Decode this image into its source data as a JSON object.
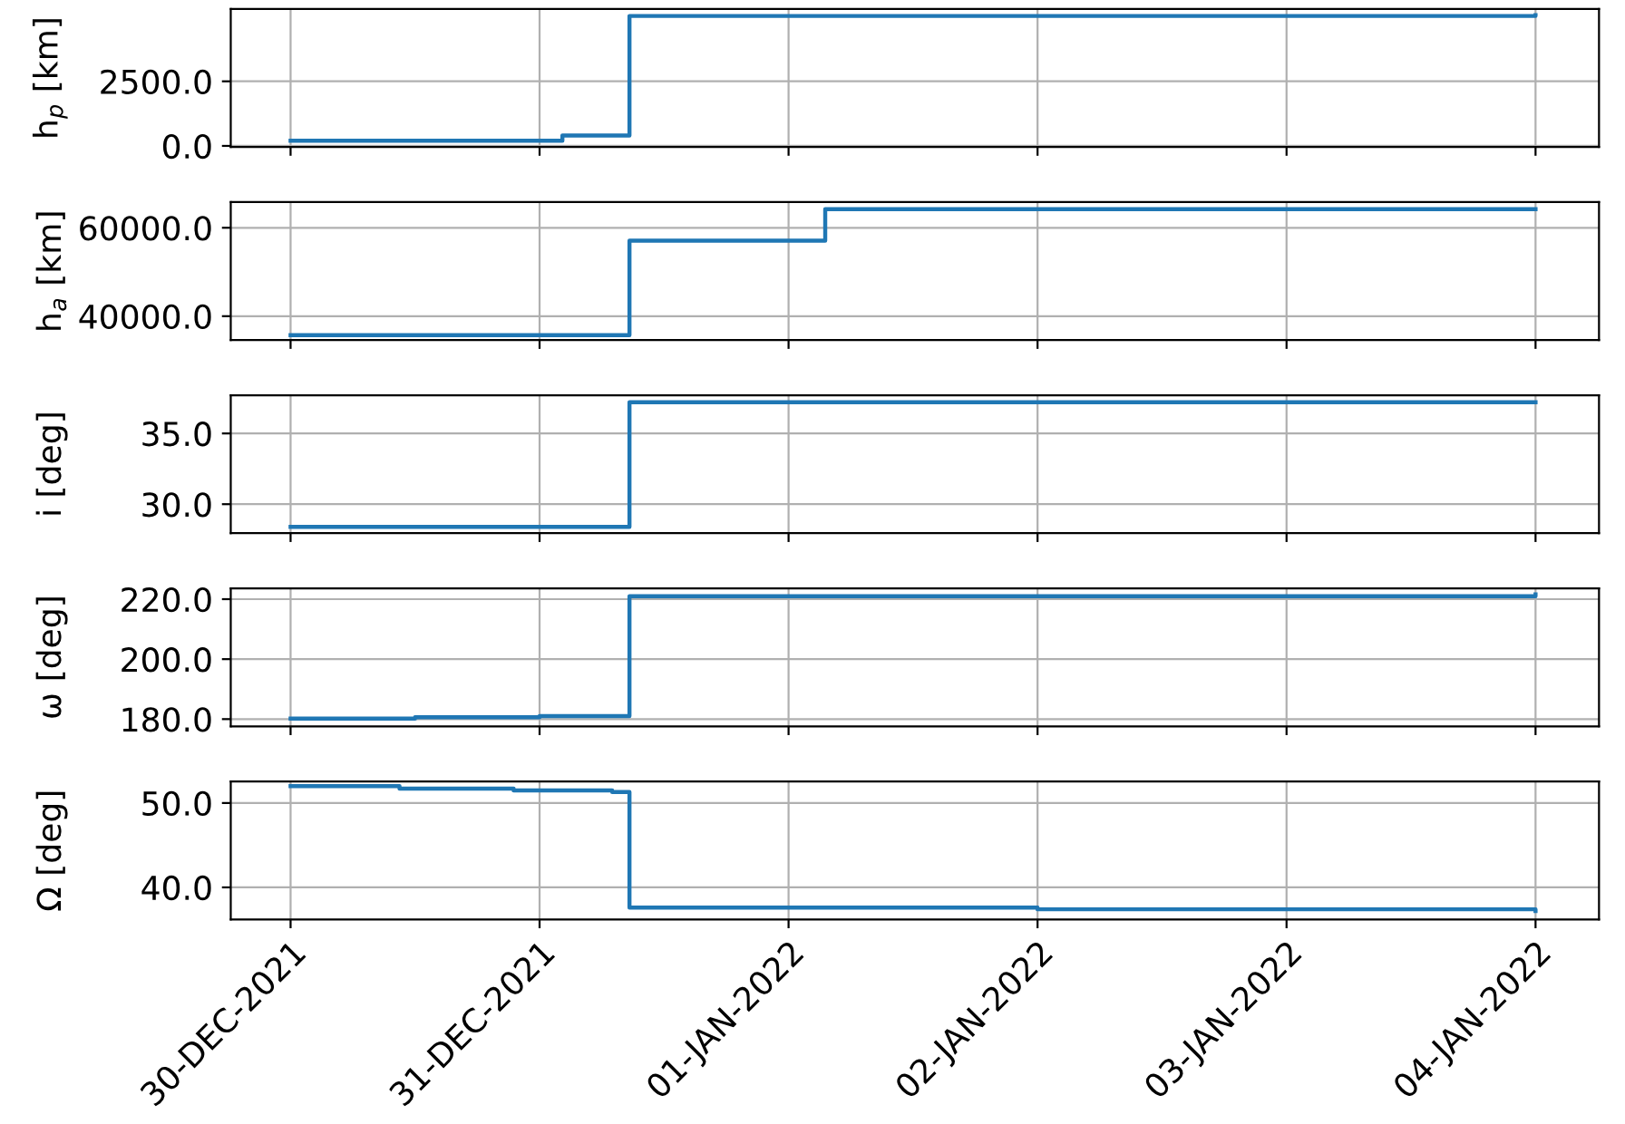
{
  "chart_data": [
    {
      "type": "step",
      "ylabel": "h$_{p}$ [km]",
      "x": [
        "2021-12-30T00:00",
        "2021-12-31T02:12",
        "2021-12-31T08:40",
        "2022-01-04T00:00"
      ],
      "series": [
        {
          "color": "#1f77b4",
          "values": [
            200,
            400,
            5030,
            5060
          ]
        }
      ],
      "xlim": [
        "2021-12-29T18:14",
        "2022-01-04T06:07"
      ],
      "xticks": [
        {
          "value": "2021-12-30",
          "label": null
        },
        {
          "value": "2021-12-31",
          "label": null
        },
        {
          "value": "2022-01-01",
          "label": null
        },
        {
          "value": "2022-01-02",
          "label": null
        },
        {
          "value": "2022-01-03",
          "label": null
        },
        {
          "value": "2022-01-04",
          "label": null
        }
      ],
      "ylim": [
        -40,
        5300
      ],
      "yticks": [
        {
          "value": 0,
          "label": "0.0"
        },
        {
          "value": 2500,
          "label": "2500.0"
        }
      ],
      "grid": true,
      "tick_labels": "y"
    },
    {
      "type": "step",
      "ylabel": "h$_{a}$ [km]",
      "x": [
        "2021-12-30T00:00",
        "2021-12-31T08:40",
        "2022-01-01T03:32",
        "2022-01-04T00:00"
      ],
      "series": [
        {
          "color": "#1f77b4",
          "values": [
            35700,
            57100,
            64200,
            64200
          ]
        }
      ],
      "xlim": [
        "2021-12-29T18:14",
        "2022-01-04T06:07"
      ],
      "xticks": [
        {
          "value": "2021-12-30",
          "label": null
        },
        {
          "value": "2021-12-31",
          "label": null
        },
        {
          "value": "2022-01-01",
          "label": null
        },
        {
          "value": "2022-01-02",
          "label": null
        },
        {
          "value": "2022-01-03",
          "label": null
        },
        {
          "value": "2022-01-04",
          "label": null
        }
      ],
      "ylim": [
        34600,
        65800
      ],
      "yticks": [
        {
          "value": 40000,
          "label": "40000.0"
        },
        {
          "value": 60000,
          "label": "60000.0"
        }
      ],
      "grid": true,
      "tick_labels": "y"
    },
    {
      "type": "step",
      "ylabel": "i [deg]",
      "x": [
        "2021-12-30T00:00",
        "2021-12-31T08:40",
        "2022-01-04T00:00"
      ],
      "series": [
        {
          "color": "#1f77b4",
          "values": [
            28.4,
            37.2,
            37.2
          ]
        }
      ],
      "xlim": [
        "2021-12-29T18:14",
        "2022-01-04T06:07"
      ],
      "xticks": [
        {
          "value": "2021-12-30",
          "label": null
        },
        {
          "value": "2021-12-31",
          "label": null
        },
        {
          "value": "2022-01-01",
          "label": null
        },
        {
          "value": "2022-01-02",
          "label": null
        },
        {
          "value": "2022-01-03",
          "label": null
        },
        {
          "value": "2022-01-04",
          "label": null
        }
      ],
      "ylim": [
        27.95,
        37.7
      ],
      "yticks": [
        {
          "value": 30,
          "label": "30.0"
        },
        {
          "value": 35,
          "label": "35.0"
        }
      ],
      "grid": true,
      "tick_labels": "y"
    },
    {
      "type": "step",
      "ylabel": "ω [deg]",
      "x": [
        "2021-12-30T00:00",
        "2021-12-30T12:00",
        "2021-12-31T00:00",
        "2021-12-31T08:40",
        "2022-01-04T00:00"
      ],
      "series": [
        {
          "color": "#1f77b4",
          "values": [
            180.2,
            180.6,
            181.0,
            221.0,
            221.6
          ]
        }
      ],
      "xlim": [
        "2021-12-29T18:14",
        "2022-01-04T06:07"
      ],
      "xticks": [
        {
          "value": "2021-12-30",
          "label": null
        },
        {
          "value": "2021-12-31",
          "label": null
        },
        {
          "value": "2022-01-01",
          "label": null
        },
        {
          "value": "2022-01-02",
          "label": null
        },
        {
          "value": "2022-01-03",
          "label": null
        },
        {
          "value": "2022-01-04",
          "label": null
        }
      ],
      "ylim": [
        177.6,
        223.6
      ],
      "yticks": [
        {
          "value": 180,
          "label": "180.0"
        },
        {
          "value": 200,
          "label": "200.0"
        },
        {
          "value": 220,
          "label": "220.0"
        }
      ],
      "grid": true,
      "tick_labels": "y"
    },
    {
      "type": "step",
      "ylabel": "Ω [deg]",
      "x": [
        "2021-12-30T00:00",
        "2021-12-30T10:30",
        "2021-12-30T21:30",
        "2021-12-31T07:00",
        "2021-12-31T08:40",
        "2022-01-02T00:00",
        "2022-01-04T00:00"
      ],
      "series": [
        {
          "color": "#1f77b4",
          "values": [
            52.0,
            51.7,
            51.5,
            51.3,
            37.6,
            37.4,
            37.2
          ]
        }
      ],
      "xlim": [
        "2021-12-29T18:14",
        "2022-01-04T06:07"
      ],
      "xticks": [
        {
          "value": "2021-12-30",
          "label": "30-DEC-2021"
        },
        {
          "value": "2021-12-31",
          "label": "31-DEC-2021"
        },
        {
          "value": "2022-01-01",
          "label": "01-JAN-2022"
        },
        {
          "value": "2022-01-02",
          "label": "02-JAN-2022"
        },
        {
          "value": "2022-01-03",
          "label": "03-JAN-2022"
        },
        {
          "value": "2022-01-04",
          "label": "04-JAN-2022"
        }
      ],
      "ylim": [
        36.2,
        52.55
      ],
      "yticks": [
        {
          "value": 40,
          "label": "40.0"
        },
        {
          "value": 50,
          "label": "50.0"
        }
      ],
      "grid": true
    }
  ]
}
